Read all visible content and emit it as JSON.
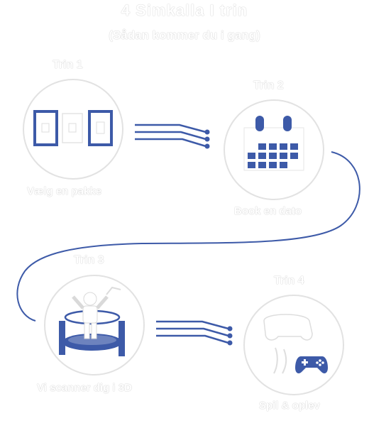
{
  "header": {
    "title": "4 Simkalla I trin",
    "subtitle": "(Sådan kommer du i gang)"
  },
  "steps": [
    {
      "label": "Trin 1",
      "caption": "Vælg en pakke"
    },
    {
      "label": "Trin 2",
      "caption": "Book en dato"
    },
    {
      "label": "Trin 3",
      "caption": "Vi scanner dig i 3D"
    },
    {
      "label": "Trin 4",
      "caption": "Spil & oplev"
    }
  ],
  "colors": {
    "accent": "#3d5aa8",
    "circle_outline": "#e3e3e3",
    "text_outline": "#c4c4c4"
  },
  "icons": [
    "package-cards-icon",
    "calendar-icon",
    "scanner-person-icon",
    "gamepad-icon"
  ]
}
